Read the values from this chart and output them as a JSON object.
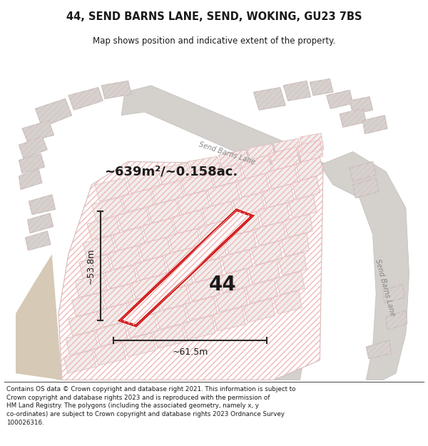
{
  "title": "44, SEND BARNS LANE, SEND, WOKING, GU23 7BS",
  "subtitle": "Map shows position and indicative extent of the property.",
  "footer": "Contains OS data © Crown copyright and database right 2021. This information is subject to\nCrown copyright and database rights 2023 and is reproduced with the permission of\nHM Land Registry. The polygons (including the associated geometry, namely x, y\nco-ordinates) are subject to Crown copyright and database rights 2023 Ordnance Survey\n100026316.",
  "area_label": "~639m²/~0.158ac.",
  "property_number": "44",
  "width_label": "~61.5m",
  "height_label": "~53.8m",
  "road_label_diag": "Send Barns Lane",
  "road_label_vert": "Send Barns Lane",
  "map_bg": "#f7f5f2",
  "road_fill": "#d4d0cc",
  "road_edge": "#c0bcb8",
  "tan_fill": "#d6c9b5",
  "building_fill": "#d0cecb",
  "building_edge": "#b8b5b2",
  "plot_fill": "#ffffff",
  "plot_hatch_color": "#f0b8b8",
  "prop_outline": "#cc0000",
  "prop_fill": "#ffffff",
  "prop_hatch_color": "#f5b0b0",
  "dim_line_color": "#2a2a2a",
  "label_color": "#1a1a1a",
  "road_label_color": "#888888",
  "title_color": "#1a1a1a",
  "footer_color": "#1a1a1a",
  "border_color": "#888888"
}
